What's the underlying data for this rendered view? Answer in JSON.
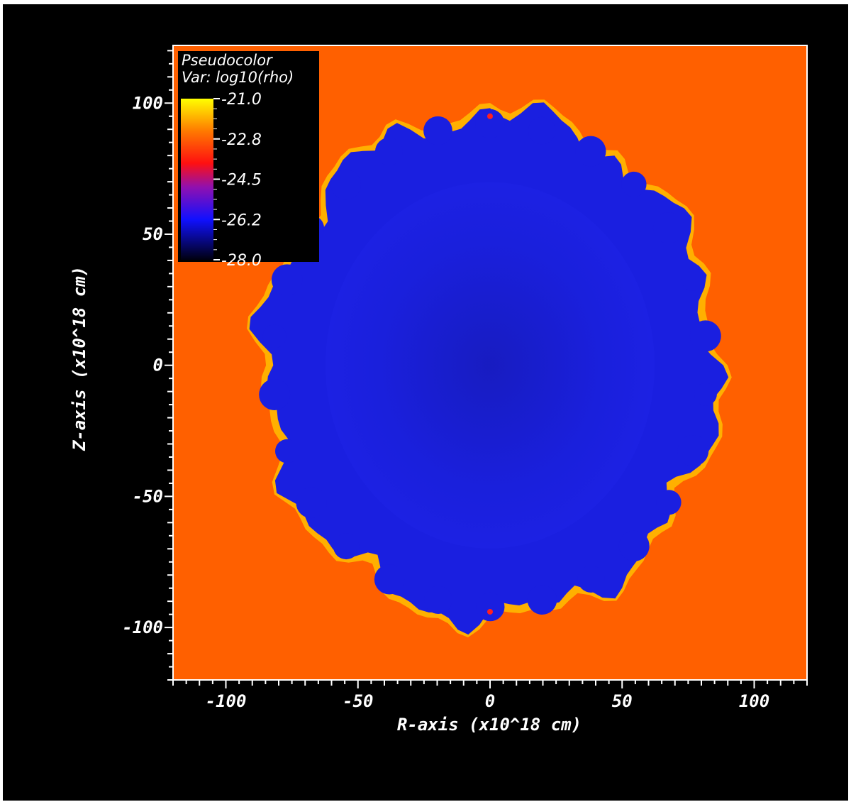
{
  "chart_data": {
    "type": "heatmap",
    "plot_kind": "Pseudocolor",
    "variable_label": "Var: log10(rho)",
    "title": "Pseudocolor",
    "xlabel": "R-axis (x10^18 cm)",
    "ylabel": "Z-axis (x10^18 cm)",
    "xlim": [
      -120,
      120
    ],
    "ylim": [
      -120,
      122
    ],
    "x_ticks": [
      -100,
      -50,
      0,
      50,
      100
    ],
    "x_tick_labels": [
      "-100",
      "-50",
      "0",
      "50",
      "100"
    ],
    "y_ticks": [
      -100,
      -50,
      0,
      50,
      100
    ],
    "y_tick_labels": [
      "-100",
      "-50",
      "0",
      "50",
      "100"
    ],
    "colorbar": {
      "min": -28.0,
      "max": -21.0,
      "tick_labels": [
        "-21.0",
        "-22.8",
        "-24.5",
        "-26.2",
        "-28.0"
      ],
      "colors": [
        "#000010",
        "#1010ff",
        "#9010b0",
        "#ff1010",
        "#ff7a00",
        "#ffff00"
      ]
    },
    "background_value_color": "#ff6000",
    "bubble_fill_color": "#1a1fe0",
    "bubble_rim_color": "#ffb000",
    "bubble_extent": {
      "r_range": [
        -86,
        87
      ],
      "z_range": [
        -96,
        98
      ]
    }
  }
}
